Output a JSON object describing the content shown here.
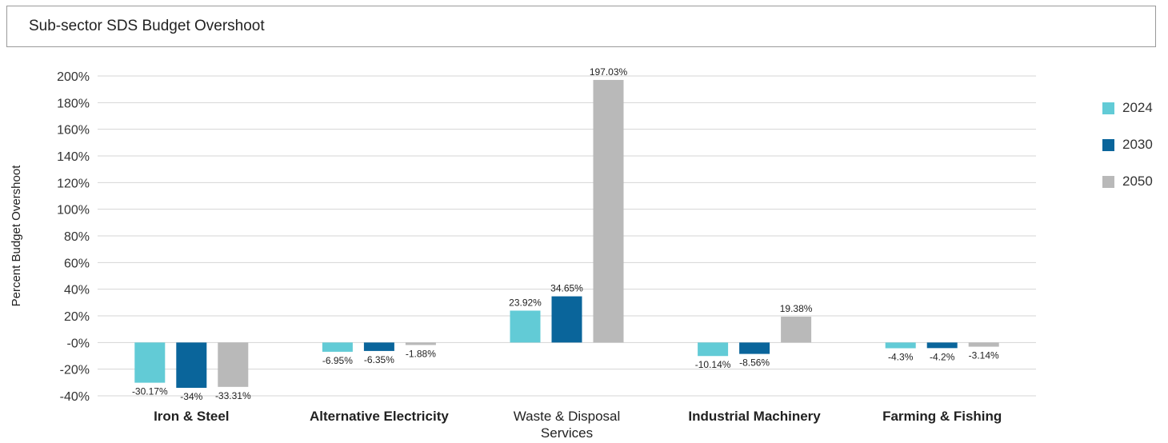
{
  "title": "Sub-sector SDS Budget Overshoot",
  "chart_data": {
    "type": "bar",
    "title": "Sub-sector SDS Budget Overshoot",
    "xlabel": "",
    "ylabel": "Percent Budget Overshoot",
    "ylim": [
      -40,
      200
    ],
    "yticks": [
      -40,
      -20,
      0,
      20,
      40,
      60,
      80,
      100,
      120,
      140,
      160,
      180,
      200
    ],
    "ytick_labels": [
      "-40%",
      "-20%",
      "-0%",
      "20%",
      "40%",
      "60%",
      "80%",
      "100%",
      "120%",
      "140%",
      "160%",
      "180%",
      "200%"
    ],
    "grid": true,
    "legend_position": "right",
    "categories": [
      "Iron & Steel",
      "Alternative Electricity",
      "Waste & Disposal Services",
      "Industrial Machinery",
      "Farming & Fishing"
    ],
    "category_bold": [
      true,
      true,
      false,
      true,
      true
    ],
    "series": [
      {
        "name": "2024",
        "color": "#62cbd6",
        "values": [
          -30.17,
          -6.95,
          23.92,
          -10.14,
          -4.3
        ],
        "labels": [
          "-30.17%",
          "-6.95%",
          "23.92%",
          "-10.14%",
          "-4.3%"
        ]
      },
      {
        "name": "2030",
        "color": "#0a659b",
        "values": [
          -34,
          -6.35,
          34.65,
          -8.56,
          -4.2
        ],
        "labels": [
          "-34%",
          "-6.35%",
          "34.65%",
          "-8.56%",
          "-4.2%"
        ]
      },
      {
        "name": "2050",
        "color": "#b9b9b9",
        "values": [
          -33.31,
          -1.88,
          197.03,
          19.38,
          -3.14
        ],
        "labels": [
          "-33.31%",
          "-1.88%",
          "197.03%",
          "19.38%",
          "-3.14%"
        ]
      }
    ]
  }
}
